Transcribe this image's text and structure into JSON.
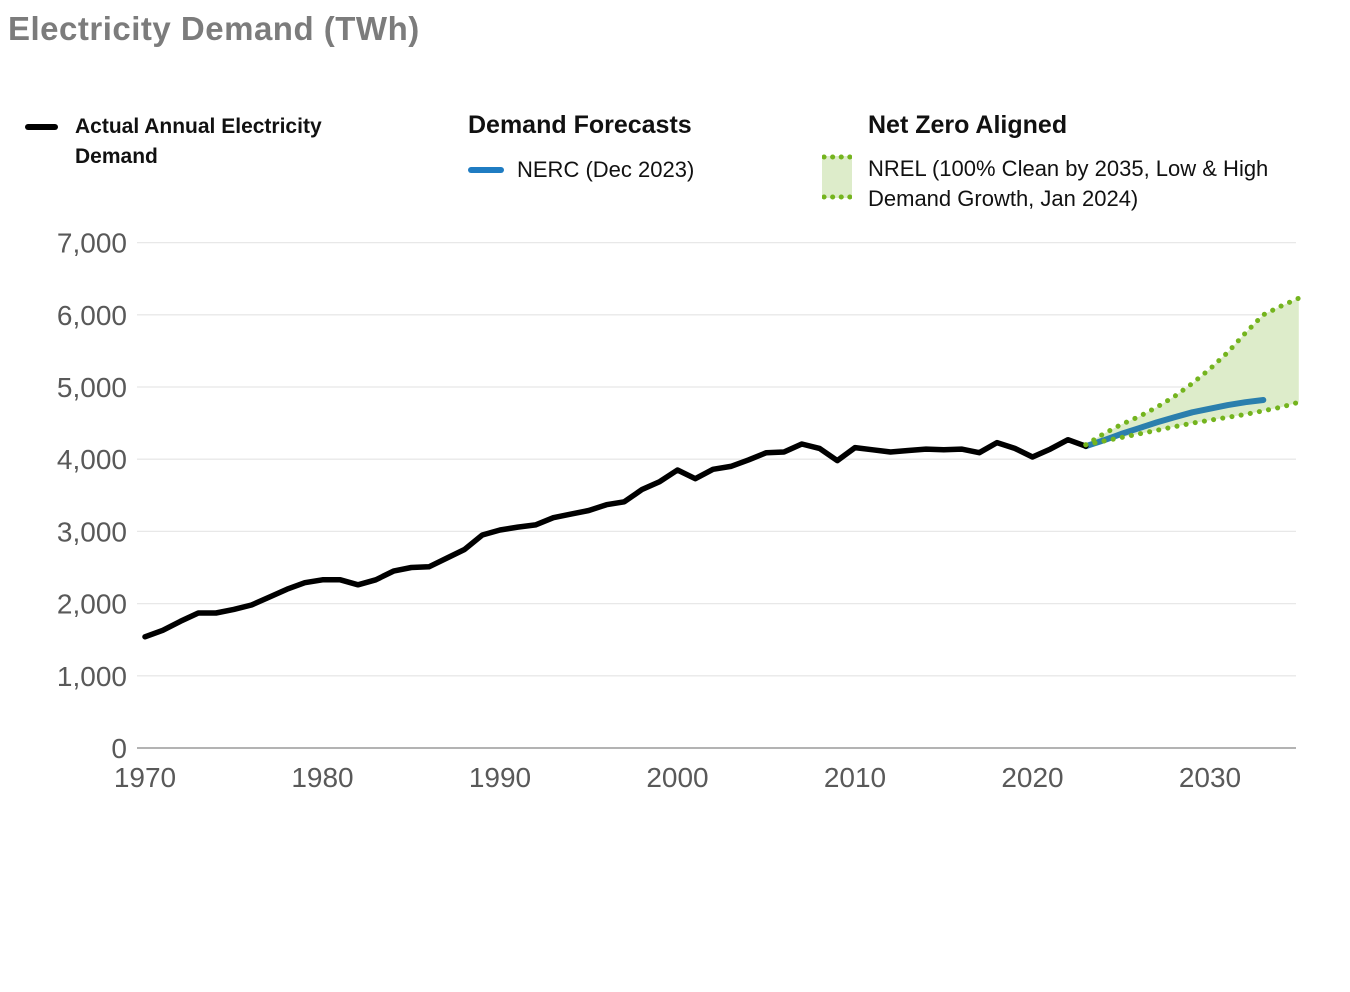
{
  "title": "Electricity Demand (TWh)",
  "legend": {
    "actual_label": "Actual Annual Electricity Demand",
    "forecasts_header": "Demand Forecasts",
    "nerc_label": "NERC (Dec 2023)",
    "netzero_header": "Net Zero Aligned",
    "nrel_label": "NREL (100% Clean by 2035, Low & High Demand Growth, Jan 2024)"
  },
  "colors": {
    "actual_line": "#000000",
    "nerc_line": "#2b7fad",
    "nerc_swatch": "#1f7cc2",
    "nrel_dots": "#74b41e",
    "nrel_fill": "#ddecca",
    "title_gray": "#7c7c7c",
    "axis_text": "#595959",
    "gridline": "#e8e8e8",
    "zero_line": "#b3b3b3"
  },
  "chart_data": {
    "type": "line",
    "title": "Electricity Demand (TWh)",
    "xlabel": "",
    "ylabel": "TWh",
    "xlim": [
      1970,
      2035
    ],
    "ylim": [
      0,
      7000
    ],
    "grid": "horizontal",
    "legend_position": "top",
    "x_axis": {
      "ticks": [
        1970,
        1980,
        1990,
        2000,
        2010,
        2020,
        2030
      ]
    },
    "y_axis": {
      "ticks": [
        {
          "value": 0,
          "label": "0"
        },
        {
          "value": 1000,
          "label": "1,000"
        },
        {
          "value": 2000,
          "label": "2,000"
        },
        {
          "value": 3000,
          "label": "3,000"
        },
        {
          "value": 4000,
          "label": "4,000"
        },
        {
          "value": 5000,
          "label": "5,000"
        },
        {
          "value": 6000,
          "label": "6,000"
        },
        {
          "value": 7000,
          "label": "7,000"
        }
      ]
    },
    "series": [
      {
        "id": "actual",
        "name": "Actual Annual Electricity Demand",
        "style": "solid",
        "color": "#000000",
        "stroke_width": 5.5,
        "start_year": 1970,
        "values": [
          1540,
          1630,
          1755,
          1870,
          1870,
          1920,
          1980,
          2090,
          2200,
          2290,
          2330,
          2330,
          2260,
          2330,
          2450,
          2500,
          2510,
          2630,
          2750,
          2950,
          3020,
          3060,
          3090,
          3190,
          3240,
          3290,
          3370,
          3410,
          3580,
          3690,
          3850,
          3730,
          3860,
          3900,
          3990,
          4090,
          4100,
          4210,
          4150,
          3980,
          4160,
          4130,
          4100,
          4120,
          4140,
          4130,
          4140,
          4090,
          4230,
          4150,
          4030,
          4140,
          4270,
          4180
        ]
      },
      {
        "id": "nerc",
        "name": "NERC (Dec 2023)",
        "style": "solid",
        "color": "#2b7fad",
        "stroke_width": 6,
        "start_year": 2023,
        "values": [
          4180,
          4260,
          4350,
          4430,
          4510,
          4580,
          4650,
          4700,
          4750,
          4790,
          4820
        ]
      },
      {
        "id": "nrel_high",
        "name": "NREL 100% Clean by 2035 - High Demand Growth (Jan 2024)",
        "style": "dotted",
        "color": "#74b41e",
        "stroke_width": 5,
        "start_year": 2023,
        "values": [
          4200,
          4350,
          4480,
          4590,
          4720,
          4870,
          5050,
          5250,
          5480,
          5750,
          6000,
          6120,
          6230
        ]
      },
      {
        "id": "nrel_low",
        "name": "NREL 100% Clean by 2035 - Low Demand Growth (Jan 2024)",
        "style": "dotted",
        "color": "#74b41e",
        "stroke_width": 5,
        "start_year": 2023,
        "values": [
          4200,
          4250,
          4300,
          4350,
          4400,
          4450,
          4500,
          4540,
          4580,
          4620,
          4670,
          4720,
          4790
        ]
      }
    ],
    "band": {
      "upper": "nrel_high",
      "lower": "nrel_low",
      "fill": "#ddecca"
    }
  }
}
